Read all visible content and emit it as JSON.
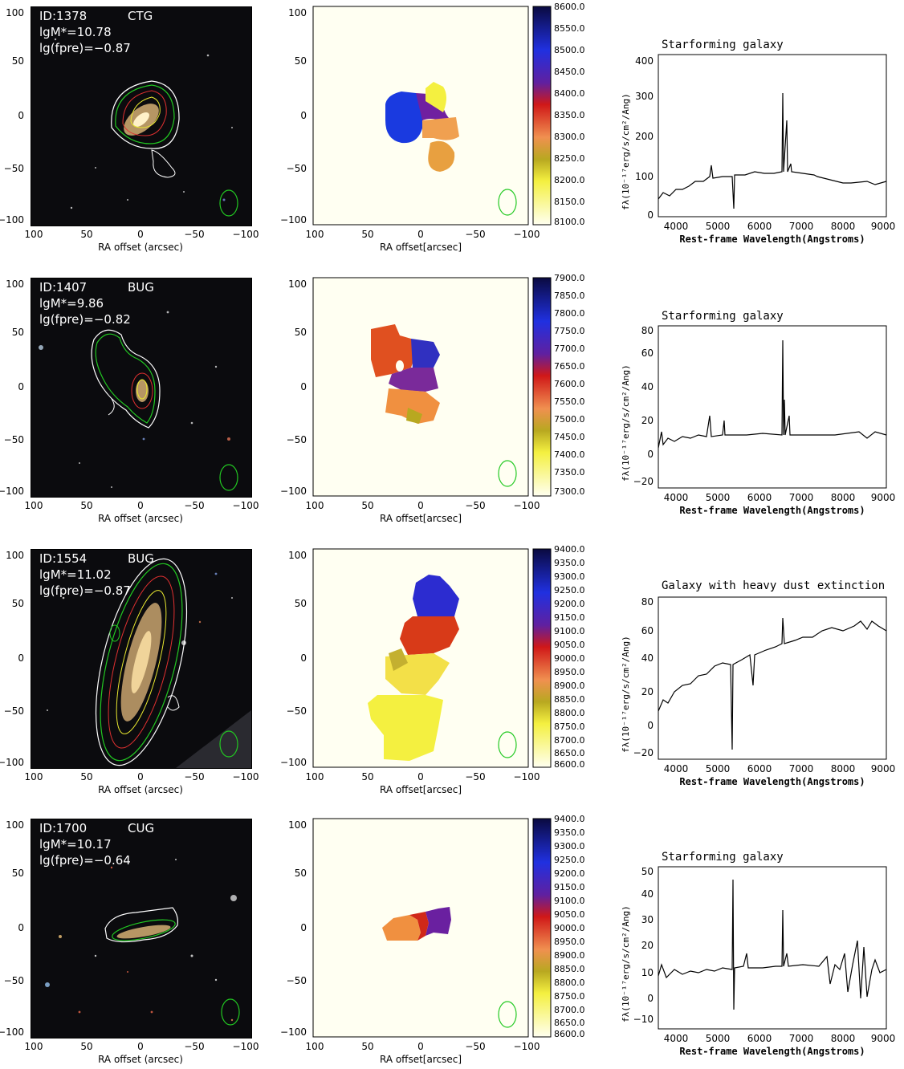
{
  "common": {
    "sky_xlabel": "RA offset (arcsec)",
    "vel_xlabel": "RA offset[arcsec]",
    "spec_xlabel": "Rest-frame Wavelength(Angstroms)",
    "spec_ylabel": "fλ(10⁻¹⁷erg/s/cm²/Ang)",
    "offset_ticks": [
      "100",
      "50",
      "0",
      "−50",
      "−100"
    ],
    "offset_yticks": [
      "100",
      "50",
      "0",
      "−50",
      "−100"
    ],
    "wave_ticks": [
      "4000",
      "5000",
      "6000",
      "7000",
      "8000",
      "9000"
    ]
  },
  "galaxies": [
    {
      "id": "ID:1378",
      "group": "CTG",
      "mass": "lgM*=10.78",
      "fpre": "lg(fpre)=−0.87",
      "colorbar": [
        "8600.0",
        "8550.0",
        "8500.0",
        "8450.0",
        "8400.0",
        "8350.0",
        "8300.0",
        "8250.0",
        "8200.0",
        "8150.0",
        "8100.0"
      ],
      "spec_title": "Starforming galaxy",
      "spec_yticks": [
        "0",
        "100",
        "200",
        "300",
        "400"
      ]
    },
    {
      "id": "ID:1407",
      "group": "BUG",
      "mass": "lgM*=9.86",
      "fpre": "lg(fpre)=−0.82",
      "colorbar": [
        "7900.0",
        "7850.0",
        "7800.0",
        "7750.0",
        "7700.0",
        "7650.0",
        "7600.0",
        "7550.0",
        "7500.0",
        "7450.0",
        "7400.0",
        "7350.0",
        "7300.0"
      ],
      "spec_title": "Starforming galaxy",
      "spec_yticks": [
        "−20",
        "0",
        "20",
        "40",
        "60",
        "80"
      ]
    },
    {
      "id": "ID:1554",
      "group": "BUG",
      "mass": "lgM*=11.02",
      "fpre": "lg(fpre)=−0.87",
      "colorbar": [
        "9400.0",
        "9350.0",
        "9300.0",
        "9250.0",
        "9200.0",
        "9150.0",
        "9100.0",
        "9050.0",
        "9000.0",
        "8950.0",
        "8900.0",
        "8850.0",
        "8800.0",
        "8750.0",
        "8700.0",
        "8650.0",
        "8600.0"
      ],
      "spec_title": "Galaxy with heavy dust extinction",
      "spec_yticks": [
        "−20",
        "0",
        "20",
        "40",
        "60",
        "80"
      ]
    },
    {
      "id": "ID:1700",
      "group": "CUG",
      "mass": "lgM*=10.17",
      "fpre": "lg(fpre)=−0.64",
      "colorbar": [
        "9400.0",
        "9350.0",
        "9300.0",
        "9250.0",
        "9200.0",
        "9150.0",
        "9100.0",
        "9050.0",
        "9000.0",
        "8950.0",
        "8900.0",
        "8850.0",
        "8800.0",
        "8750.0",
        "8700.0",
        "8650.0",
        "8600.0"
      ],
      "spec_title": "Starforming galaxy",
      "spec_yticks": [
        "−10",
        "0",
        "10",
        "20",
        "30",
        "40",
        "50"
      ]
    }
  ]
}
